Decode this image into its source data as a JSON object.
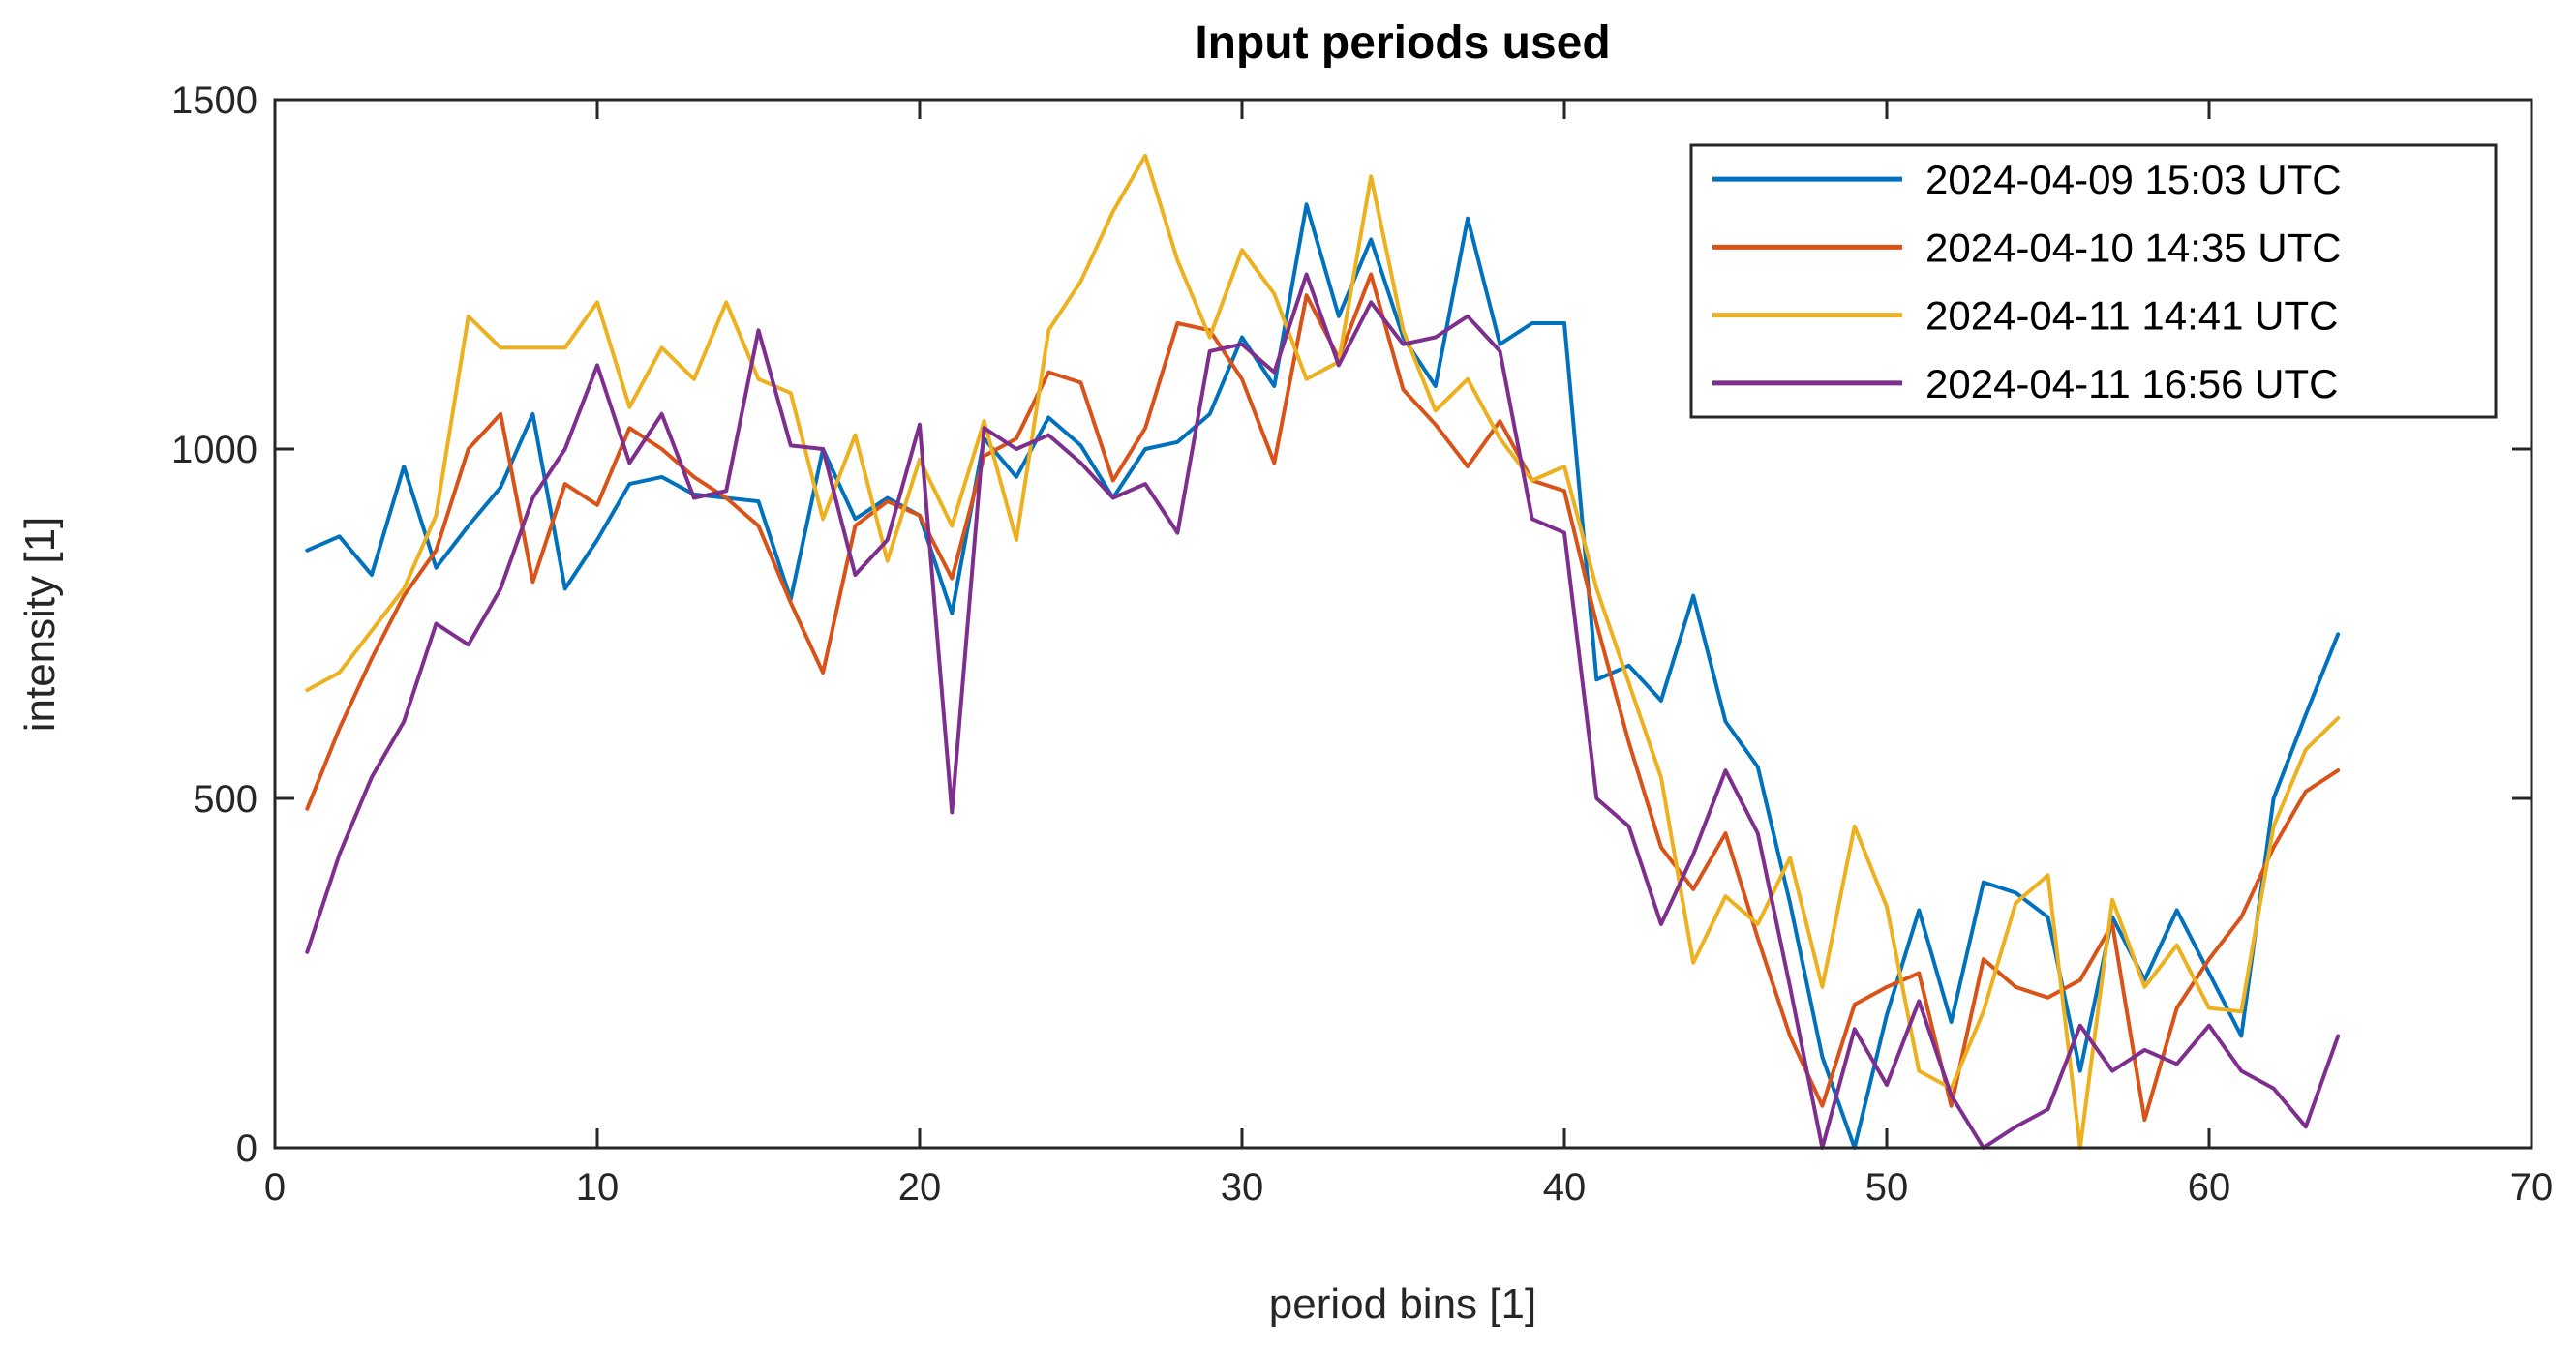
{
  "chart_data": {
    "type": "line",
    "title": "Input periods used",
    "xlabel": "period bins [1]",
    "ylabel": "intensity [1]",
    "xlim": [
      0,
      70
    ],
    "ylim": [
      0,
      1500
    ],
    "xticks": [
      0,
      10,
      20,
      30,
      40,
      50,
      60,
      70
    ],
    "yticks": [
      0,
      500,
      1000,
      1500
    ],
    "grid": false,
    "legend_position": "top-right",
    "background": "#FFFFFF",
    "axis_color": "#262626",
    "x_start_bin": 1,
    "series": [
      {
        "name": "2024-04-09 15:03 UTC",
        "color": "#0072BD",
        "values": [
          855,
          875,
          820,
          975,
          830,
          890,
          945,
          1050,
          800,
          870,
          950,
          960,
          935,
          930,
          925,
          785,
          1000,
          900,
          930,
          905,
          765,
          1015,
          960,
          1045,
          1005,
          930,
          1000,
          1010,
          1050,
          1160,
          1090,
          1350,
          1190,
          1300,
          1160,
          1090,
          1330,
          1150,
          1180,
          1180,
          670,
          690,
          640,
          790,
          610,
          545,
          350,
          130,
          0,
          190,
          340,
          180,
          380,
          365,
          330,
          110,
          330,
          240,
          340,
          250,
          160,
          500,
          620,
          735
        ]
      },
      {
        "name": "2024-04-10 14:35 UTC",
        "color": "#D95319",
        "values": [
          485,
          600,
          700,
          790,
          855,
          1000,
          1050,
          810,
          950,
          920,
          1030,
          1000,
          960,
          930,
          890,
          780,
          680,
          890,
          925,
          905,
          815,
          990,
          1015,
          1110,
          1095,
          955,
          1030,
          1180,
          1170,
          1100,
          980,
          1220,
          1130,
          1250,
          1085,
          1035,
          975,
          1040,
          955,
          940,
          750,
          580,
          430,
          370,
          450,
          300,
          160,
          60,
          205,
          230,
          250,
          60,
          270,
          230,
          215,
          240,
          320,
          40,
          200,
          270,
          330,
          430,
          510,
          540
        ]
      },
      {
        "name": "2024-04-11 14:41 UTC",
        "color": "#EDB120",
        "values": [
          655,
          680,
          740,
          800,
          905,
          1190,
          1145,
          1145,
          1145,
          1210,
          1060,
          1145,
          1100,
          1210,
          1100,
          1080,
          900,
          1020,
          840,
          985,
          890,
          1040,
          870,
          1170,
          1240,
          1340,
          1420,
          1270,
          1160,
          1285,
          1222,
          1100,
          1125,
          1390,
          1170,
          1055,
          1100,
          1015,
          955,
          975,
          800,
          665,
          530,
          265,
          360,
          320,
          415,
          230,
          460,
          345,
          110,
          85,
          195,
          350,
          390,
          0,
          355,
          230,
          290,
          200,
          195,
          460,
          570,
          615
        ]
      },
      {
        "name": "2024-04-11 16:56 UTC",
        "color": "#7E2F8E",
        "values": [
          280,
          420,
          530,
          610,
          750,
          720,
          800,
          930,
          1000,
          1120,
          980,
          1050,
          930,
          940,
          1170,
          1005,
          1000,
          820,
          870,
          1035,
          480,
          1030,
          1000,
          1020,
          980,
          930,
          950,
          880,
          1140,
          1150,
          1110,
          1250,
          1120,
          1210,
          1150,
          1160,
          1190,
          1140,
          900,
          880,
          500,
          460,
          320,
          420,
          540,
          450,
          230,
          0,
          170,
          90,
          210,
          75,
          0,
          30,
          55,
          175,
          110,
          140,
          120,
          175,
          110,
          85,
          30,
          160
        ]
      }
    ]
  }
}
